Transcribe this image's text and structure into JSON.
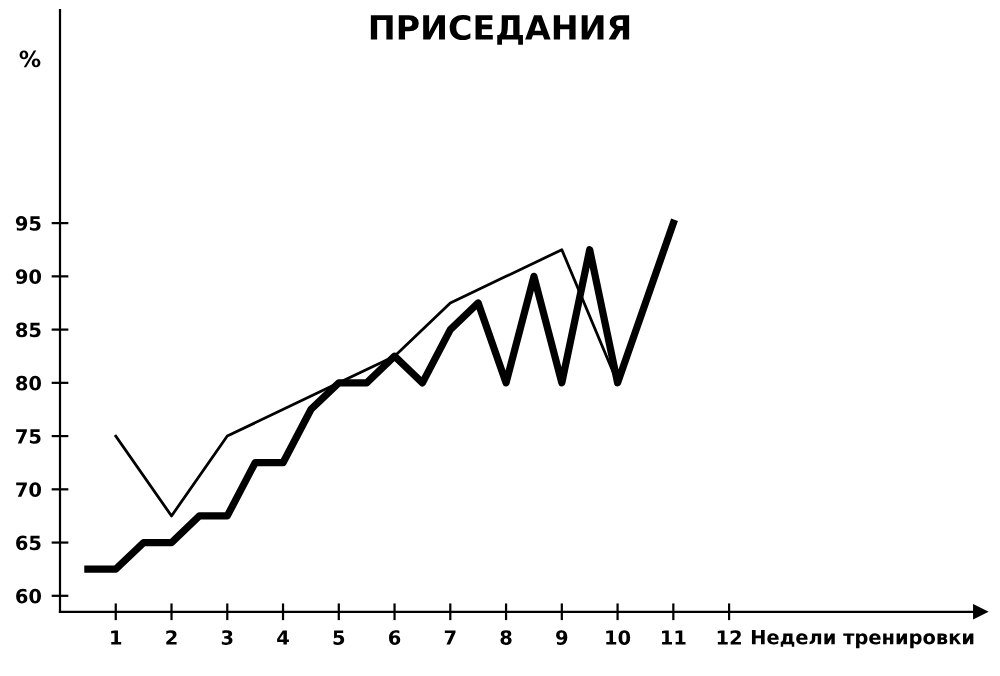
{
  "chart_data": {
    "type": "line",
    "title": "ПРИСЕДАНИЯ",
    "ylabel": "%",
    "xlabel": "Недели тренировки",
    "xlim": [
      0,
      16.5
    ],
    "ylim": [
      58.5,
      115
    ],
    "xticks": [
      1,
      2,
      3,
      4,
      5,
      6,
      7,
      8,
      9,
      10,
      11,
      12
    ],
    "yticks": [
      60,
      65,
      70,
      75,
      80,
      85,
      90,
      95
    ],
    "grid": false,
    "legend": false,
    "marker": "none",
    "line_style": "solid",
    "series": [
      {
        "color": "#000000",
        "x": [
          0.5,
          1,
          1.5,
          2,
          2.5,
          3,
          3.5,
          4,
          4.5,
          5,
          5.5,
          6,
          6.5,
          7,
          7.5,
          8,
          8.5,
          9,
          9.5,
          10,
          11
        ],
        "values": [
          62.5,
          62.5,
          65,
          65,
          67.5,
          67.5,
          72.5,
          72.5,
          77.5,
          80,
          80,
          82.5,
          80,
          85,
          87.5,
          80,
          90,
          80,
          92.5,
          80,
          95
        ]
      },
      {
        "color": "#000000",
        "x": [
          1,
          2,
          3,
          5,
          6,
          7,
          8,
          9,
          10,
          11
        ],
        "values": [
          75,
          67.5,
          75,
          80,
          82.5,
          87.5,
          90,
          92.5,
          80,
          95
        ]
      }
    ]
  }
}
